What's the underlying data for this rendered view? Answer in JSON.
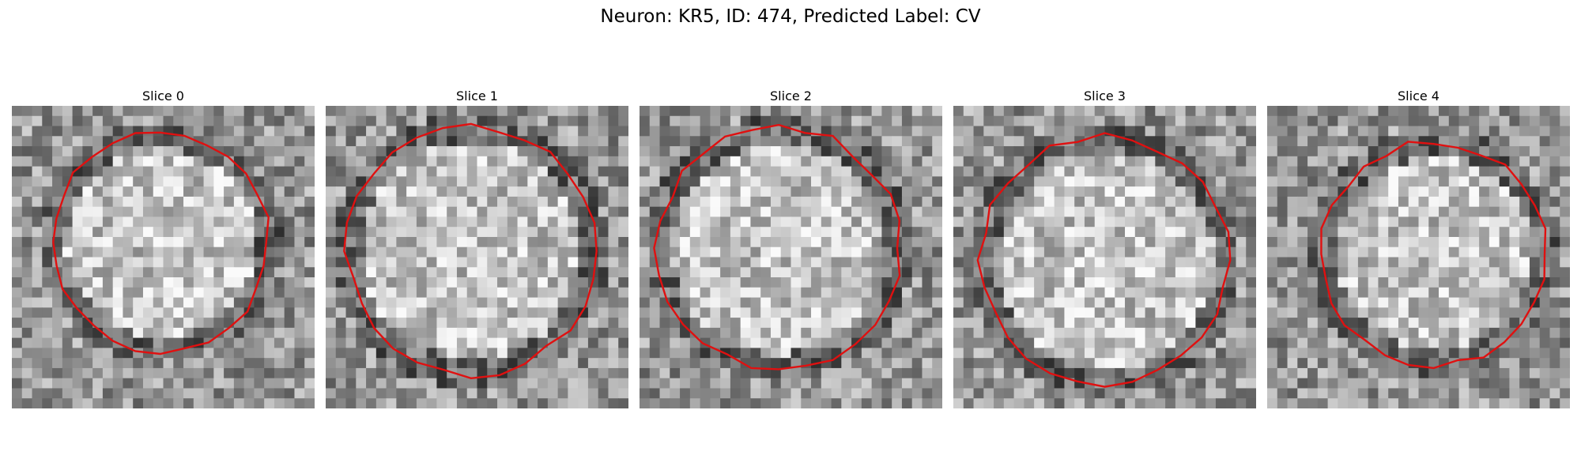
{
  "figure": {
    "title": "Neuron: KR5, ID: 474, Predicted Label: CV"
  },
  "contour_color": "#e01010",
  "panels": [
    {
      "title": "Slice 0",
      "radius_frac": 0.36,
      "center": [
        0.49,
        0.45
      ],
      "noise_seed": 11
    },
    {
      "title": "Slice 1",
      "radius_frac": 0.41,
      "center": [
        0.48,
        0.48
      ],
      "noise_seed": 23
    },
    {
      "title": "Slice 2",
      "radius_frac": 0.4,
      "center": [
        0.46,
        0.47
      ],
      "noise_seed": 37
    },
    {
      "title": "Slice 3",
      "radius_frac": 0.41,
      "center": [
        0.5,
        0.51
      ],
      "noise_seed": 41
    },
    {
      "title": "Slice 4",
      "radius_frac": 0.37,
      "center": [
        0.55,
        0.49
      ],
      "noise_seed": 53
    }
  ]
}
